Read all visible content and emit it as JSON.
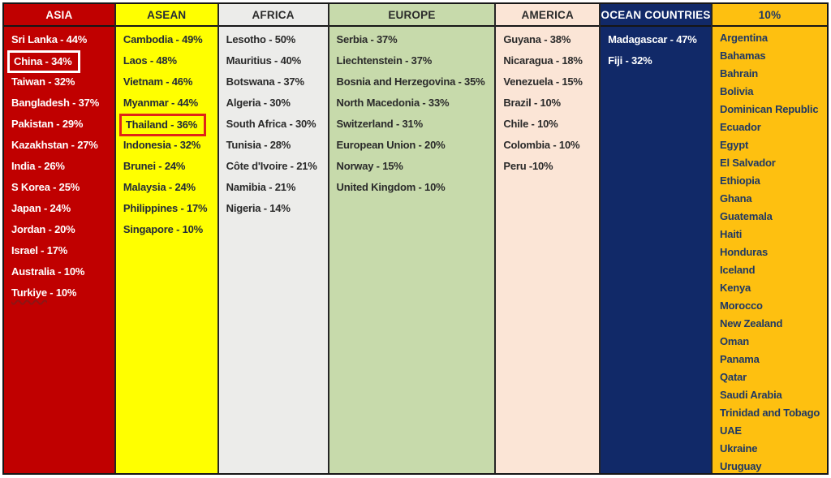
{
  "page": {
    "background": "#FFFFFF",
    "border_color": "#161616"
  },
  "highlights": {
    "china_box_color": "#FFFFFF",
    "thailand_box_color": "#E02318",
    "turkiye_squiggle_color": "#8E1414"
  },
  "table": {
    "columns": [
      {
        "id": "asia",
        "header": "ASIA",
        "bg": "#C00000",
        "text_color": "#FFFFFF",
        "items": [
          {
            "text": "Sri Lanka - 44%"
          },
          {
            "text": "China - 34%",
            "box": "#FFFFFF"
          },
          {
            "text": "Taiwan - 32%"
          },
          {
            "text": "Bangladesh - 37%"
          },
          {
            "text": "Pakistan - 29%"
          },
          {
            "text": "Kazakhstan - 27%"
          },
          {
            "text": "India - 26%"
          },
          {
            "text": "S Korea - 25%"
          },
          {
            "text": "Japan - 24%"
          },
          {
            "text": "Jordan - 20%"
          },
          {
            "text": "Israel - 17%"
          },
          {
            "text": "Australia - 10%"
          },
          {
            "text": "Turkiye - 10%",
            "wavy_word": "Turkiye",
            "wavy_rest": " - 10%",
            "wavy_color": "#8E1414"
          }
        ]
      },
      {
        "id": "asean",
        "header": "ASEAN",
        "bg": "#FFFF00",
        "text_color": "#232B38",
        "items": [
          {
            "text": "Cambodia - 49%"
          },
          {
            "text": "Laos - 48%"
          },
          {
            "text": "Vietnam - 46%"
          },
          {
            "text": "Myanmar - 44%"
          },
          {
            "text": "Thailand - 36%",
            "box": "#E02318"
          },
          {
            "text": "Indonesia - 32%"
          },
          {
            "text": "Brunei - 24%"
          },
          {
            "text": "Malaysia - 24%"
          },
          {
            "text": "Philippines - 17%"
          },
          {
            "text": "Singapore - 10%"
          }
        ]
      },
      {
        "id": "africa",
        "header": "AFRICA",
        "bg": "#ECECEA",
        "text_color": "#2A2A2A",
        "items": [
          {
            "text": "Lesotho - 50%"
          },
          {
            "text": "Mauritius - 40%"
          },
          {
            "text": "Botswana - 37%"
          },
          {
            "text": "Algeria - 30%"
          },
          {
            "text": "South Africa - 30%"
          },
          {
            "text": "Tunisia - 28%"
          },
          {
            "text": "Côte d'Ivoire - 21%"
          },
          {
            "text": "Namibia - 21%"
          },
          {
            "text": "Nigeria - 14%"
          }
        ]
      },
      {
        "id": "europe",
        "header": "EUROPE",
        "bg": "#C7DAAB",
        "text_color": "#2A2A2A",
        "items": [
          {
            "text": "Serbia - 37%"
          },
          {
            "text": "Liechtenstein - 37%"
          },
          {
            "text": "Bosnia and Herzegovina - 35%"
          },
          {
            "text": "North Macedonia - 33%"
          },
          {
            "text": "Switzerland - 31%"
          },
          {
            "text": "European Union - 20%"
          },
          {
            "text": "Norway - 15%"
          },
          {
            "text": "United Kingdom - 10%"
          }
        ]
      },
      {
        "id": "america",
        "header": "AMERICA",
        "bg": "#FBE5D6",
        "text_color": "#2A2A2A",
        "items": [
          {
            "text": "Guyana - 38%"
          },
          {
            "text": "Nicaragua - 18%"
          },
          {
            "text": "Venezuela - 15%"
          },
          {
            "text": "Brazil - 10%"
          },
          {
            "text": "Chile - 10%"
          },
          {
            "text": "Colombia - 10%"
          },
          {
            "text": "Peru -10%"
          }
        ]
      },
      {
        "id": "ocean",
        "header": "OCEAN COUNTRIES",
        "bg": "#112968",
        "text_color": "#FFFFFF",
        "items": [
          {
            "text": "Madagascar - 47%"
          },
          {
            "text": "Fiji - 32%"
          }
        ]
      },
      {
        "id": "ten",
        "header": "10%",
        "bg": "#FEC010",
        "text_color": "#1F3864",
        "items": [
          {
            "text": "Argentina"
          },
          {
            "text": "Bahamas"
          },
          {
            "text": "Bahrain"
          },
          {
            "text": "Bolivia"
          },
          {
            "text": "Dominican Republic"
          },
          {
            "text": "Ecuador"
          },
          {
            "text": "Egypt"
          },
          {
            "text": "El Salvador"
          },
          {
            "text": "Ethiopia"
          },
          {
            "text": "Ghana"
          },
          {
            "text": "Guatemala"
          },
          {
            "text": "Haiti"
          },
          {
            "text": "Honduras"
          },
          {
            "text": "Iceland"
          },
          {
            "text": "Kenya"
          },
          {
            "text": "Morocco"
          },
          {
            "text": "New Zealand"
          },
          {
            "text": "Oman"
          },
          {
            "text": "Panama"
          },
          {
            "text": "Qatar"
          },
          {
            "text": "Saudi Arabia"
          },
          {
            "text": "Trinidad and Tobago"
          },
          {
            "text": "UAE"
          },
          {
            "text": "Ukraine"
          },
          {
            "text": "Uruguay"
          }
        ]
      }
    ]
  },
  "chart_data": {
    "type": "table",
    "title": "Tariff percentages by region",
    "legend_position": "none",
    "groups": [
      {
        "region": "ASIA",
        "entries": [
          {
            "country": "Sri Lanka",
            "value": 44
          },
          {
            "country": "China",
            "value": 34,
            "highlighted": "white-box"
          },
          {
            "country": "Taiwan",
            "value": 32
          },
          {
            "country": "Bangladesh",
            "value": 37
          },
          {
            "country": "Pakistan",
            "value": 29
          },
          {
            "country": "Kazakhstan",
            "value": 27
          },
          {
            "country": "India",
            "value": 26
          },
          {
            "country": "S Korea",
            "value": 25
          },
          {
            "country": "Japan",
            "value": 24
          },
          {
            "country": "Jordan",
            "value": 20
          },
          {
            "country": "Israel",
            "value": 17
          },
          {
            "country": "Australia",
            "value": 10
          },
          {
            "country": "Turkiye",
            "value": 10
          }
        ]
      },
      {
        "region": "ASEAN",
        "entries": [
          {
            "country": "Cambodia",
            "value": 49
          },
          {
            "country": "Laos",
            "value": 48
          },
          {
            "country": "Vietnam",
            "value": 46
          },
          {
            "country": "Myanmar",
            "value": 44
          },
          {
            "country": "Thailand",
            "value": 36,
            "highlighted": "red-box"
          },
          {
            "country": "Indonesia",
            "value": 32
          },
          {
            "country": "Brunei",
            "value": 24
          },
          {
            "country": "Malaysia",
            "value": 24
          },
          {
            "country": "Philippines",
            "value": 17
          },
          {
            "country": "Singapore",
            "value": 10
          }
        ]
      },
      {
        "region": "AFRICA",
        "entries": [
          {
            "country": "Lesotho",
            "value": 50
          },
          {
            "country": "Mauritius",
            "value": 40
          },
          {
            "country": "Botswana",
            "value": 37
          },
          {
            "country": "Algeria",
            "value": 30
          },
          {
            "country": "South Africa",
            "value": 30
          },
          {
            "country": "Tunisia",
            "value": 28
          },
          {
            "country": "Côte d'Ivoire",
            "value": 21
          },
          {
            "country": "Namibia",
            "value": 21
          },
          {
            "country": "Nigeria",
            "value": 14
          }
        ]
      },
      {
        "region": "EUROPE",
        "entries": [
          {
            "country": "Serbia",
            "value": 37
          },
          {
            "country": "Liechtenstein",
            "value": 37
          },
          {
            "country": "Bosnia and Herzegovina",
            "value": 35
          },
          {
            "country": "North Macedonia",
            "value": 33
          },
          {
            "country": "Switzerland",
            "value": 31
          },
          {
            "country": "European Union",
            "value": 20
          },
          {
            "country": "Norway",
            "value": 15
          },
          {
            "country": "United Kingdom",
            "value": 10
          }
        ]
      },
      {
        "region": "AMERICA",
        "entries": [
          {
            "country": "Guyana",
            "value": 38
          },
          {
            "country": "Nicaragua",
            "value": 18
          },
          {
            "country": "Venezuela",
            "value": 15
          },
          {
            "country": "Brazil",
            "value": 10
          },
          {
            "country": "Chile",
            "value": 10
          },
          {
            "country": "Colombia",
            "value": 10
          },
          {
            "country": "Peru",
            "value": 10
          }
        ]
      },
      {
        "region": "OCEAN COUNTRIES",
        "entries": [
          {
            "country": "Madagascar",
            "value": 47
          },
          {
            "country": "Fiji",
            "value": 32
          }
        ]
      },
      {
        "region": "10%",
        "entries": [
          {
            "country": "Argentina",
            "value": 10
          },
          {
            "country": "Bahamas",
            "value": 10
          },
          {
            "country": "Bahrain",
            "value": 10
          },
          {
            "country": "Bolivia",
            "value": 10
          },
          {
            "country": "Dominican Republic",
            "value": 10
          },
          {
            "country": "Ecuador",
            "value": 10
          },
          {
            "country": "Egypt",
            "value": 10
          },
          {
            "country": "El Salvador",
            "value": 10
          },
          {
            "country": "Ethiopia",
            "value": 10
          },
          {
            "country": "Ghana",
            "value": 10
          },
          {
            "country": "Guatemala",
            "value": 10
          },
          {
            "country": "Haiti",
            "value": 10
          },
          {
            "country": "Honduras",
            "value": 10
          },
          {
            "country": "Iceland",
            "value": 10
          },
          {
            "country": "Kenya",
            "value": 10
          },
          {
            "country": "Morocco",
            "value": 10
          },
          {
            "country": "New Zealand",
            "value": 10
          },
          {
            "country": "Oman",
            "value": 10
          },
          {
            "country": "Panama",
            "value": 10
          },
          {
            "country": "Qatar",
            "value": 10
          },
          {
            "country": "Saudi Arabia",
            "value": 10
          },
          {
            "country": "Trinidad and Tobago",
            "value": 10
          },
          {
            "country": "UAE",
            "value": 10
          },
          {
            "country": "Ukraine",
            "value": 10
          },
          {
            "country": "Uruguay",
            "value": 10
          }
        ]
      }
    ]
  }
}
